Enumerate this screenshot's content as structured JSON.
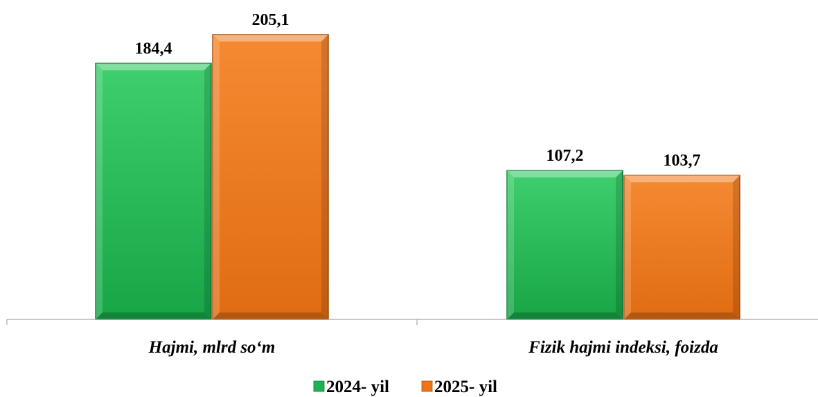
{
  "chart_data": {
    "type": "bar",
    "title": "",
    "xlabel": "",
    "ylabel": "",
    "categories": [
      "Hajmi, mlrd so‘m",
      "Fizik hajmi indeksi, foizda"
    ],
    "series": [
      {
        "name": "2024- yil",
        "values": [
          184.4,
          107.2
        ],
        "labels": [
          "184,4",
          "107,2"
        ],
        "color": "#1db350"
      },
      {
        "name": "2025- yil",
        "values": [
          205.1,
          103.7
        ],
        "labels": [
          "205,1",
          "103,7"
        ],
        "color": "#ee7418"
      }
    ],
    "ylim": [
      0,
      230
    ],
    "grid": false,
    "legend_position": "bottom",
    "colors": {
      "green": "#1db350",
      "green_dark": "#0f7a34",
      "orange": "#ee7418",
      "orange_dark": "#a84d0a",
      "axis": "#a6a6a6"
    }
  }
}
